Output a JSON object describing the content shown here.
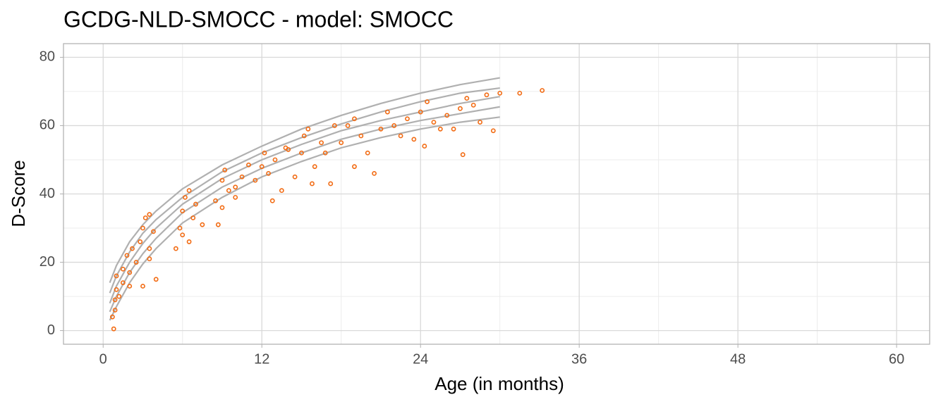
{
  "chart_data": {
    "type": "scatter",
    "title": "GCDG-NLD-SMOCC - model: SMOCC",
    "x_label": "Age (in months)",
    "y_label": "D-Score",
    "xlim": [
      -3,
      62.5
    ],
    "ylim": [
      -4,
      84
    ],
    "xticks": [
      0,
      12,
      24,
      36,
      48,
      60
    ],
    "yticks": [
      0,
      20,
      40,
      60,
      80
    ],
    "minor_xticks": [
      6,
      18,
      30,
      42,
      54
    ],
    "minor_yticks": [
      10,
      30,
      50,
      70
    ],
    "grid": true,
    "series": [
      {
        "type": "line",
        "color": "#b0b0b0",
        "x": [
          0.5,
          1,
          2,
          3,
          4,
          6,
          9,
          12,
          15,
          18,
          21,
          24,
          27,
          30
        ],
        "y": [
          14,
          19,
          26,
          31,
          35,
          41.5,
          48.5,
          54,
          59,
          63,
          66.5,
          69.5,
          72,
          74
        ]
      },
      {
        "type": "line",
        "color": "#b0b0b0",
        "x": [
          0.5,
          1,
          2,
          3,
          4,
          6,
          9,
          12,
          15,
          18,
          21,
          24,
          27,
          30
        ],
        "y": [
          11,
          16,
          23,
          28.5,
          32.5,
          39,
          46.5,
          52,
          56.5,
          60.5,
          64,
          67,
          69.5,
          71
        ]
      },
      {
        "type": "line",
        "color": "#b0b0b0",
        "x": [
          0.5,
          1,
          2,
          3,
          4,
          6,
          9,
          12,
          15,
          18,
          21,
          24,
          27,
          30
        ],
        "y": [
          8,
          13,
          20,
          25.5,
          30,
          37,
          44.5,
          50,
          54.5,
          58.5,
          61.5,
          64,
          66.5,
          68.5
        ]
      },
      {
        "type": "line",
        "color": "#b0b0b0",
        "x": [
          0.5,
          1,
          2,
          3,
          4,
          6,
          9,
          12,
          15,
          18,
          21,
          24,
          27,
          30
        ],
        "y": [
          5.5,
          10,
          17,
          22.5,
          27,
          34.5,
          42,
          47.5,
          52,
          56,
          59,
          61.5,
          63.5,
          65.5
        ]
      },
      {
        "type": "line",
        "color": "#b0b0b0",
        "x": [
          0.5,
          1,
          2,
          3,
          4,
          6,
          9,
          12,
          15,
          18,
          21,
          24,
          27,
          30
        ],
        "y": [
          3,
          7,
          14,
          19.5,
          24,
          31.5,
          39,
          45,
          49.5,
          53.5,
          56.5,
          59,
          61,
          62.5
        ]
      },
      {
        "type": "scatter",
        "color": "#f26b13",
        "x": [
          0.8,
          0.7,
          0.9,
          1.0,
          1.0,
          0.9,
          1.2,
          1.5,
          1.5,
          1.8,
          2.0,
          2.2,
          2.5,
          2.0,
          2.8,
          3.0,
          3.2,
          3.5,
          3.5,
          3.8,
          3.0,
          4.0,
          3.5,
          5.5,
          5.8,
          6.0,
          6.2,
          6.5,
          6.8,
          7.0,
          6.5,
          6.0,
          7.5,
          8.5,
          9.0,
          9.2,
          9.5,
          9.0,
          10,
          8.7,
          10.5,
          11.5,
          12,
          12.2,
          12.5,
          13,
          13.5,
          12.8,
          14,
          14.5,
          15,
          15.2,
          15.5,
          16,
          16.5,
          15.8,
          17.2,
          18,
          18.5,
          19,
          19.5,
          20,
          19,
          20.5,
          21,
          22,
          23,
          24,
          24.5,
          25,
          25.5,
          24.3,
          26,
          27,
          27.5,
          28,
          26.5,
          27.2,
          29,
          29.5,
          30,
          31.5,
          33.2,
          28.5,
          22.5,
          23.5,
          16.8,
          11,
          10,
          13.8,
          17.5,
          21.5
        ],
        "y": [
          0.5,
          4,
          9,
          12,
          16,
          6,
          10,
          14,
          18,
          22,
          17,
          24,
          20,
          13,
          26,
          30,
          33,
          24,
          21,
          29,
          13,
          15,
          34,
          24,
          30,
          35,
          39,
          41,
          33,
          37,
          26,
          28,
          31,
          38,
          44,
          47,
          41,
          36,
          42,
          31,
          45,
          44,
          48,
          52,
          46,
          50,
          41,
          38,
          53,
          45,
          52,
          57,
          59,
          48,
          55,
          43,
          43,
          55,
          60,
          62,
          57,
          52,
          48,
          46,
          59,
          60,
          62,
          64,
          67,
          61,
          59,
          54,
          63,
          65,
          68,
          66,
          59,
          51.5,
          69,
          58.5,
          69.5,
          69.5,
          70.3,
          61,
          57,
          56,
          52,
          48.5,
          39,
          53.5,
          60,
          64
        ]
      }
    ]
  }
}
